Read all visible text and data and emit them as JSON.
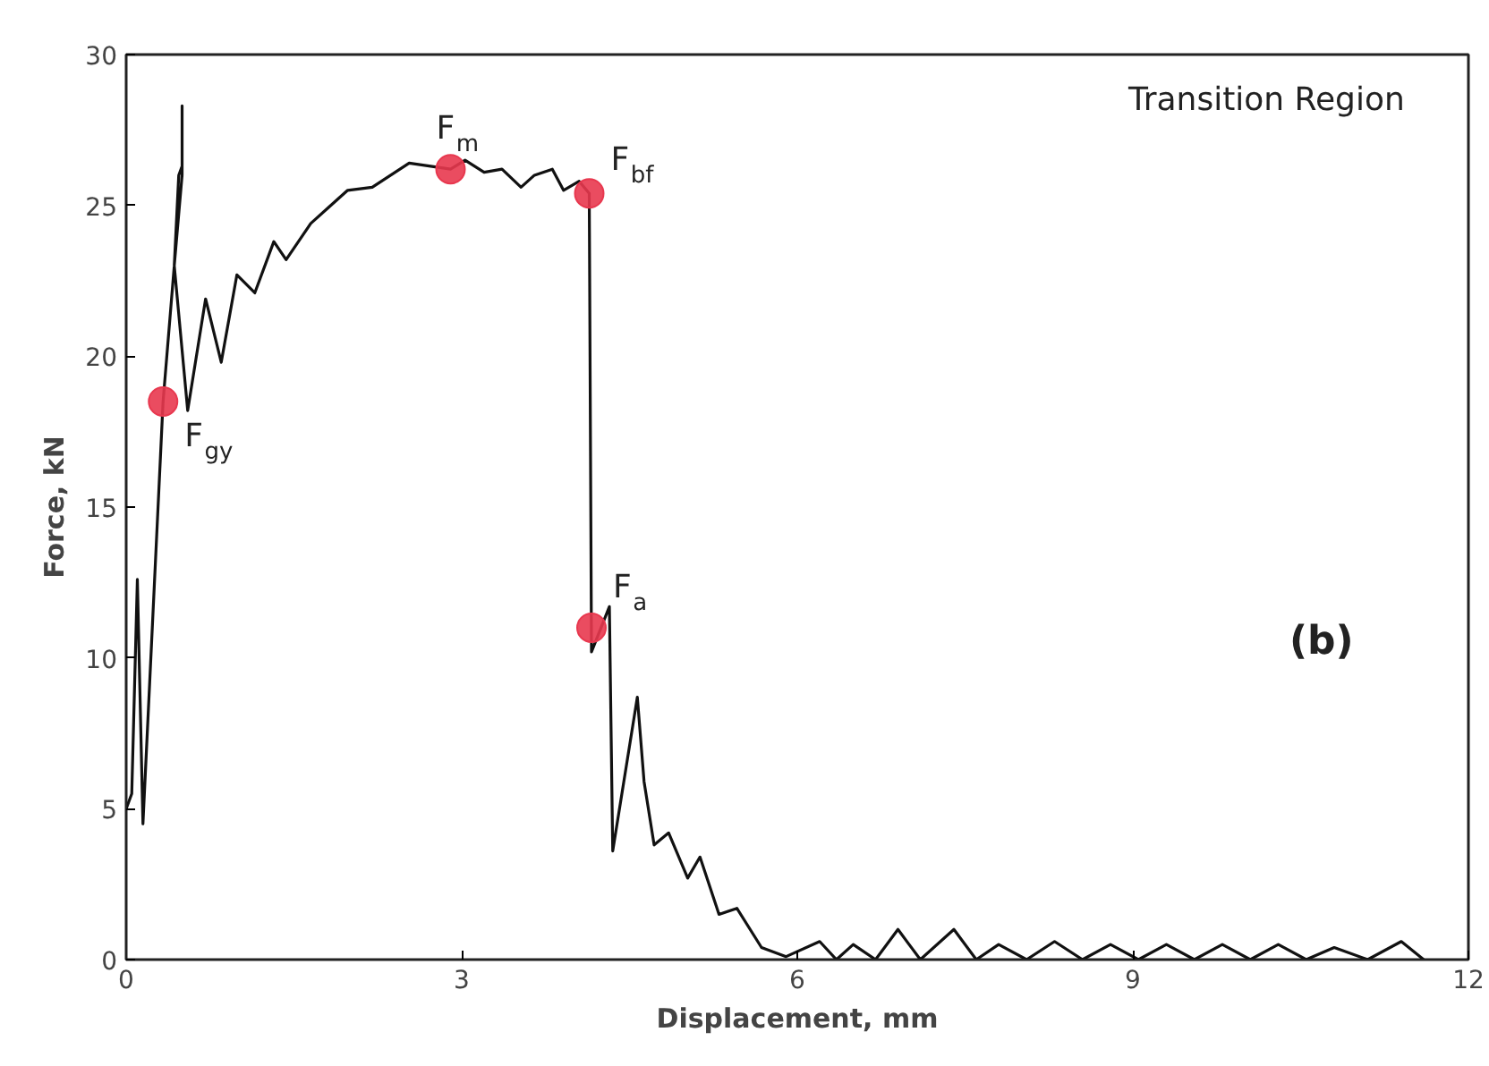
{
  "chart_data": {
    "type": "line",
    "xlabel": "Displacement, mm",
    "ylabel": "Force, kN",
    "xlim": [
      0,
      12
    ],
    "ylim": [
      0,
      30
    ],
    "xticks": [
      0,
      3,
      6,
      9,
      12
    ],
    "yticks": [
      0,
      5,
      10,
      15,
      20,
      25,
      30
    ],
    "grid": false,
    "series": [
      {
        "color": "#111111",
        "marker": "none",
        "x": [
          0,
          0.05,
          0.1,
          0.15,
          0.33,
          0.43,
          0.47,
          0.5,
          0.5,
          0.5,
          0.43,
          0.55,
          0.71,
          0.85,
          0.99,
          1.15,
          1.32,
          1.43,
          1.65,
          1.8,
          1.98,
          2.2,
          2.53,
          2.9,
          3.03,
          3.2,
          3.36,
          3.53,
          3.65,
          3.81,
          3.91,
          4.05,
          4.14,
          4.16,
          4.32,
          4.35,
          4.57,
          4.63,
          4.72,
          4.85,
          5.02,
          5.13,
          5.3,
          5.46,
          5.68,
          5.9,
          6.2,
          6.35,
          6.5,
          6.7,
          6.9,
          7.1,
          7.4,
          7.6,
          7.8,
          8.05,
          8.3,
          8.55,
          8.8,
          9.05,
          9.3,
          9.55,
          9.8,
          10.05,
          10.3,
          10.55,
          10.8,
          11.1,
          11.4,
          11.6
        ],
        "values": [
          5,
          5.5,
          12.6,
          4.5,
          18.5,
          23,
          26,
          26.3,
          28.3,
          26,
          23,
          18.2,
          21.9,
          19.8,
          22.7,
          22.1,
          23.8,
          23.2,
          24.4,
          24.9,
          25.5,
          25.6,
          26.4,
          26.2,
          26.5,
          26.1,
          26.2,
          25.6,
          26.0,
          26.2,
          25.5,
          25.8,
          25.4,
          10.2,
          11.7,
          3.6,
          8.7,
          5.9,
          3.8,
          4.2,
          2.7,
          3.4,
          1.5,
          1.7,
          0.4,
          0.1,
          0.6,
          0.0,
          0.5,
          0.0,
          1.0,
          0.0,
          1.0,
          0.0,
          0.5,
          0.0,
          0.6,
          0.0,
          0.5,
          0.0,
          0.5,
          0.0,
          0.5,
          0.0,
          0.5,
          0.0,
          0.4,
          0.0,
          0.6,
          0.0
        ]
      },
      {
        "type": "scatter",
        "color": "#e8384f",
        "marker": "circle",
        "x": [
          0.33,
          2.9,
          4.14,
          4.16
        ],
        "values": [
          18.5,
          26.2,
          25.4,
          11.0
        ]
      }
    ],
    "annotations": [
      {
        "text": "F$_{gy}$",
        "x": 0.33,
        "y": 18.5
      },
      {
        "text": "F$_{m}$",
        "x": 2.9,
        "y": 26.2
      },
      {
        "text": "F$_{bf}$",
        "x": 4.14,
        "y": 25.4
      },
      {
        "text": "F$_{a}$",
        "x": 4.16,
        "y": 11.0
      },
      "Transition Region",
      "(b)"
    ]
  }
}
